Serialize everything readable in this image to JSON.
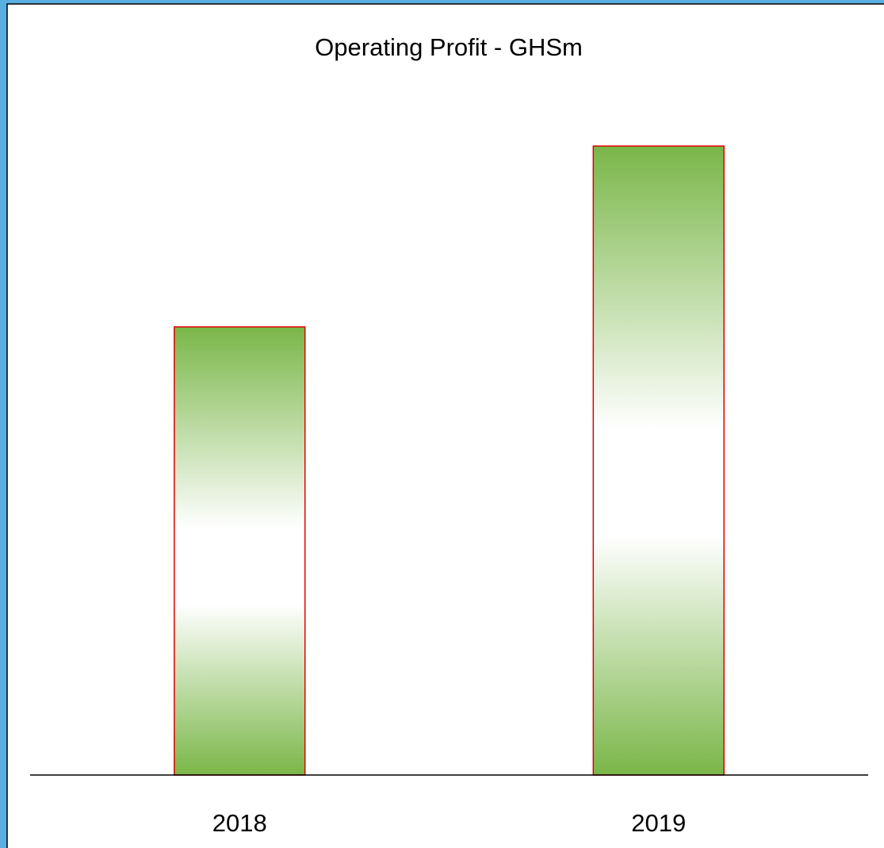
{
  "chart_data": {
    "type": "bar",
    "title": "Operating Profit - GHSm",
    "categories": [
      "2018",
      "2019"
    ],
    "values": [
      57,
      80
    ],
    "color": "#7ab648",
    "edgecolor": "#e00000",
    "ylim": [
      0,
      90
    ]
  }
}
